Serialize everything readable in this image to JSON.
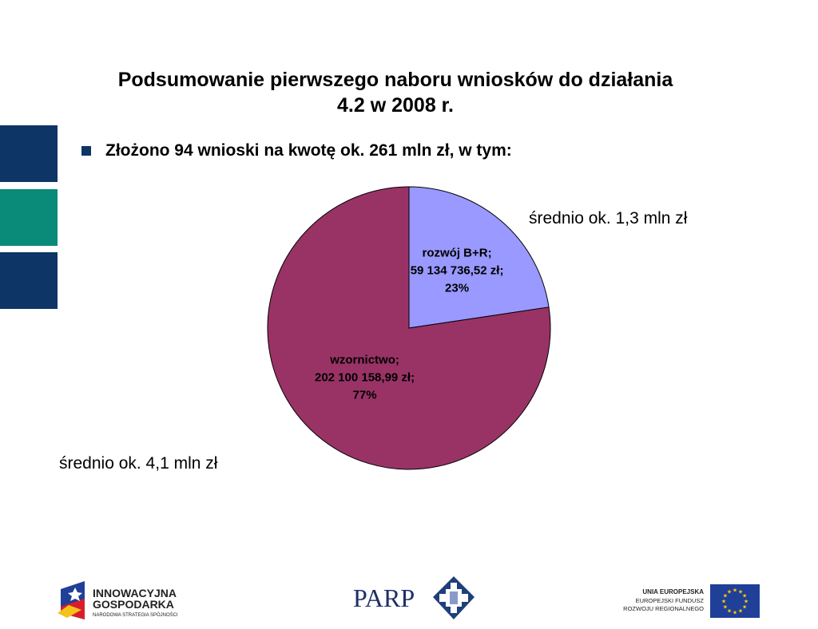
{
  "slide": {
    "title_line1": "Podsumowanie pierwszego naboru wniosków do działania",
    "title_line2": "4.2 w 2008 r.",
    "bullet": "Złożono 94 wnioski na kwotę ok. 261 mln zł, w tym:",
    "note_br": "średnio ok. 1,3 mln zł",
    "note_wz": "średnio ok. 4,1 mln zł"
  },
  "chart_data": {
    "type": "pie",
    "title": "",
    "slices": [
      {
        "label_name": "rozwój B+R;",
        "label_value": "59 134 736,52 zł;",
        "label_pct": "23%",
        "value": 59134736.52,
        "percent": 23,
        "color": "#9999ff"
      },
      {
        "label_name": "wzornictwo;",
        "label_value": "202 100 158,99 zł;",
        "label_pct": "77%",
        "value": 202100158.99,
        "percent": 77,
        "color": "#993366"
      }
    ]
  },
  "footer": {
    "ig_line1": "INNOWACYJNA",
    "ig_line2": "GOSPODARKA",
    "ig_line3": "NARODOWA STRATEGIA SPÓJNOŚCI",
    "parp": "PARP",
    "ue_line1": "UNIA EUROPEJSKA",
    "ue_line2": "EUROPEJSKI FUNDUSZ",
    "ue_line3": "ROZWOJU REGIONALNEGO"
  },
  "colors": {
    "navy": "#0d3566",
    "teal": "#0a8a78",
    "eu_blue": "#1f3f99",
    "eu_star": "#ffcc00"
  }
}
